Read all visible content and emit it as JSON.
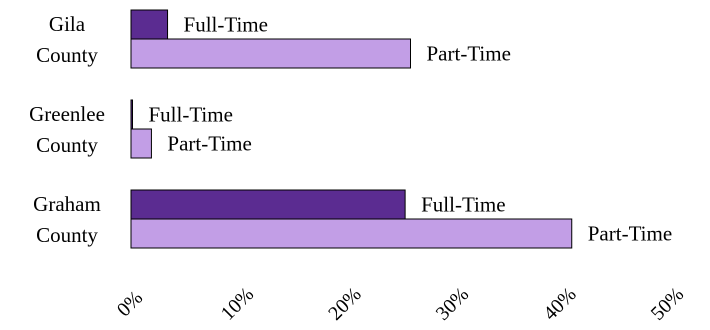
{
  "chart_data": {
    "type": "bar",
    "orientation": "horizontal",
    "title": "",
    "xlabel": "",
    "ylabel": "",
    "xlim": [
      0,
      50
    ],
    "x_ticks": [
      "0%",
      "10%",
      "20%",
      "30%",
      "40%",
      "50%"
    ],
    "grid": false,
    "legend": "none",
    "categories": [
      {
        "line1": "Gila",
        "line2": "County"
      },
      {
        "line1": "Greenlee",
        "line2": "County"
      },
      {
        "line1": "Graham",
        "line2": "County"
      }
    ],
    "series": [
      {
        "label": "Full-Time",
        "color": "#5b2c91",
        "values": [
          3.4,
          0.1,
          25.5
        ]
      },
      {
        "label": "Part-Time",
        "color": "#c29ee6",
        "values": [
          26.0,
          1.9,
          41.0
        ]
      }
    ]
  }
}
